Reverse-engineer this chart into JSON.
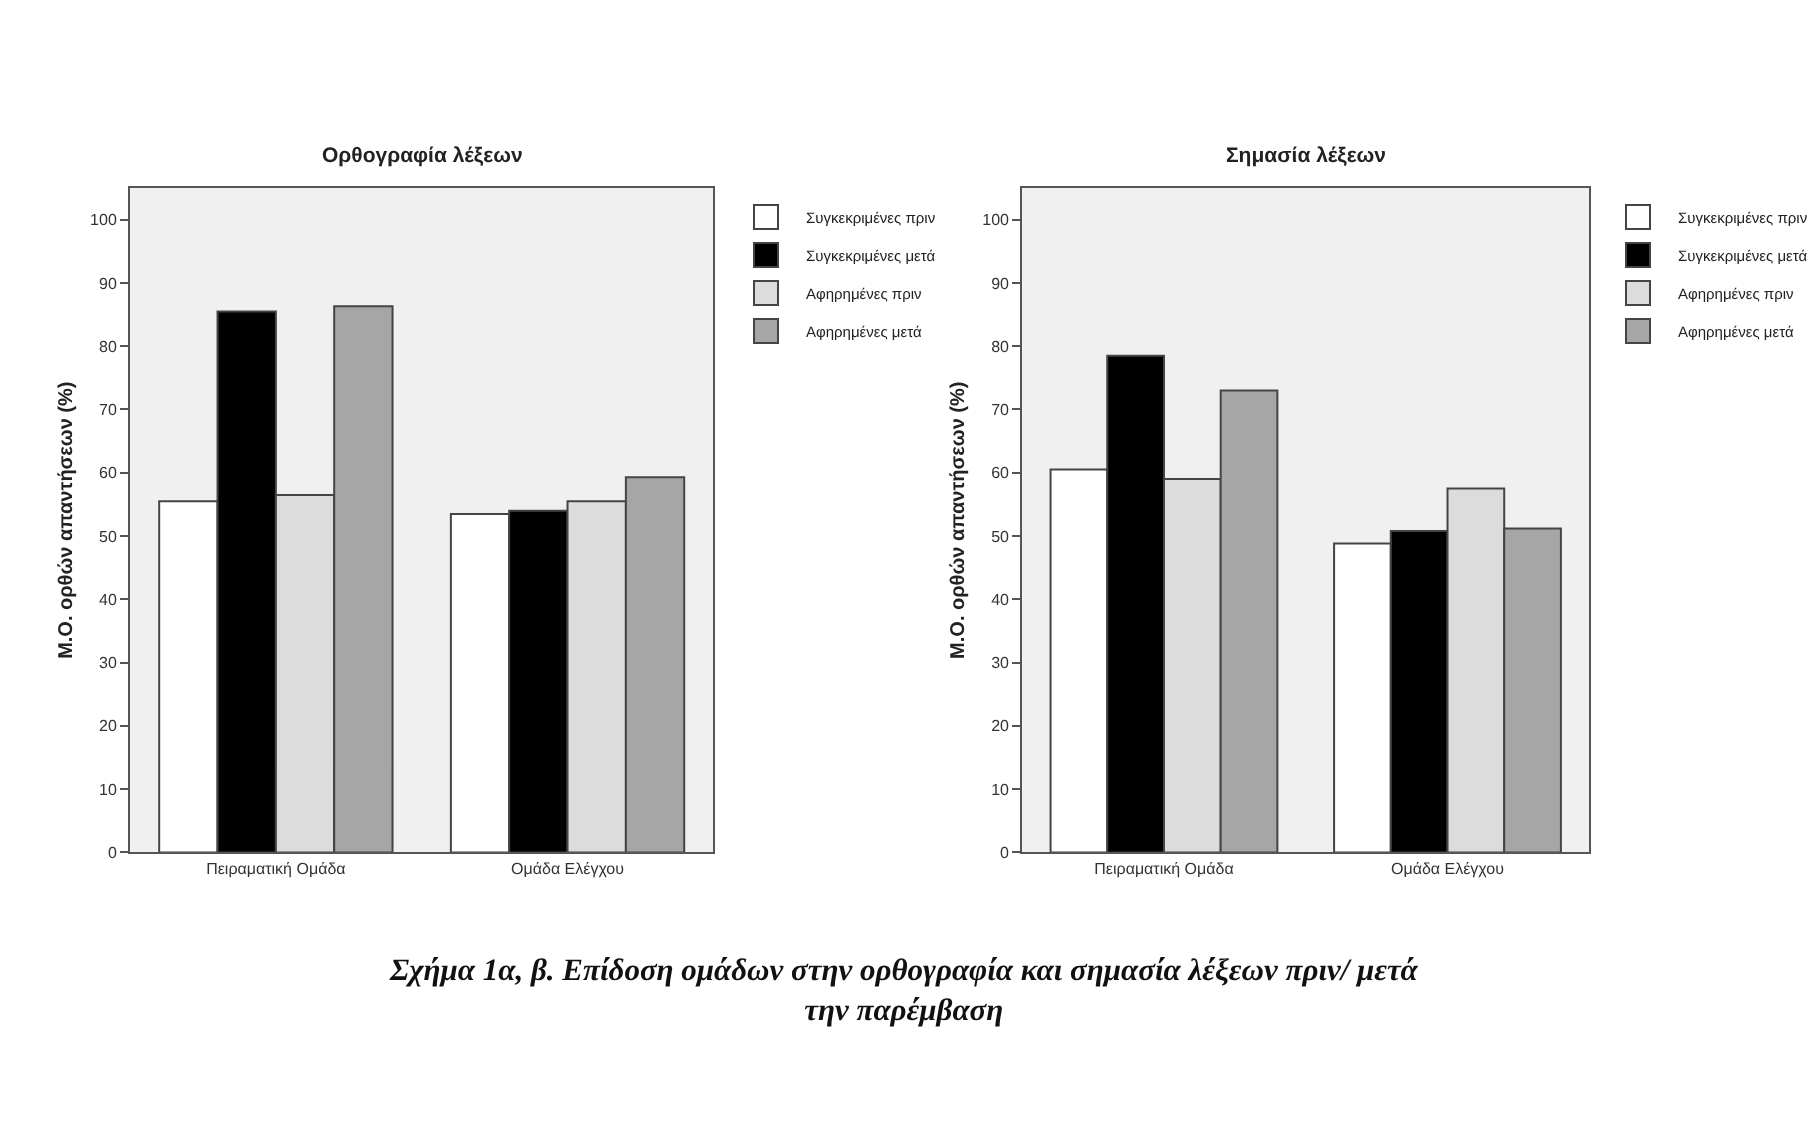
{
  "chart_data": [
    {
      "type": "bar",
      "title": "Ορθογραφία λέξεων",
      "ylabel": "Μ.Ο. ορθών απαντήσεων (%)",
      "categories": [
        "Πειραματική Ομάδα",
        "Ομάδα Ελέγχου"
      ],
      "series": [
        {
          "name": "Συγκεκριμένες πριν",
          "color": "#ffffff",
          "values": [
            55.5,
            53.5
          ]
        },
        {
          "name": "Συγκεκριμένες μετά",
          "color": "#000000",
          "values": [
            85.5,
            54
          ]
        },
        {
          "name": "Αφηρημένες πριν",
          "color": "#dcdcdc",
          "values": [
            56.5,
            55.5
          ]
        },
        {
          "name": "Αφηρημένες μετά",
          "color": "#a6a6a6",
          "values": [
            86.3,
            59.3
          ]
        }
      ],
      "ylim": [
        0,
        105
      ],
      "yticks": [
        0,
        10,
        20,
        30,
        40,
        50,
        60,
        70,
        80,
        90,
        100
      ],
      "grid": false,
      "legend": "top right",
      "annotations": [
        "Σχήμα 1α, β. Επίδοση ομάδων στην ορθογραφία και σημασία λέξεων πριν/ μετά την παρέμβαση"
      ]
    },
    {
      "type": "bar",
      "title": "Σημασία λέξεων",
      "ylabel": "Μ.Ο. ορθών απαντήσεων (%)",
      "categories": [
        "Πειραματική Ομάδα",
        "Ομάδα Ελέγχου"
      ],
      "series": [
        {
          "name": "Συγκεκριμένες πριν",
          "color": "#ffffff",
          "values": [
            60.5,
            48.8
          ]
        },
        {
          "name": "Συγκεκριμένες μετά",
          "color": "#000000",
          "values": [
            78.5,
            50.8
          ]
        },
        {
          "name": "Αφηρημένες πριν",
          "color": "#dcdcdc",
          "values": [
            59,
            57.5
          ]
        },
        {
          "name": "Αφηρημένες μετά",
          "color": "#a6a6a6",
          "values": [
            73,
            51.2
          ]
        }
      ],
      "ylim": [
        0,
        105
      ],
      "yticks": [
        0,
        10,
        20,
        30,
        40,
        50,
        60,
        70,
        80,
        90,
        100
      ],
      "grid": false,
      "legend": "top right"
    }
  ]
}
